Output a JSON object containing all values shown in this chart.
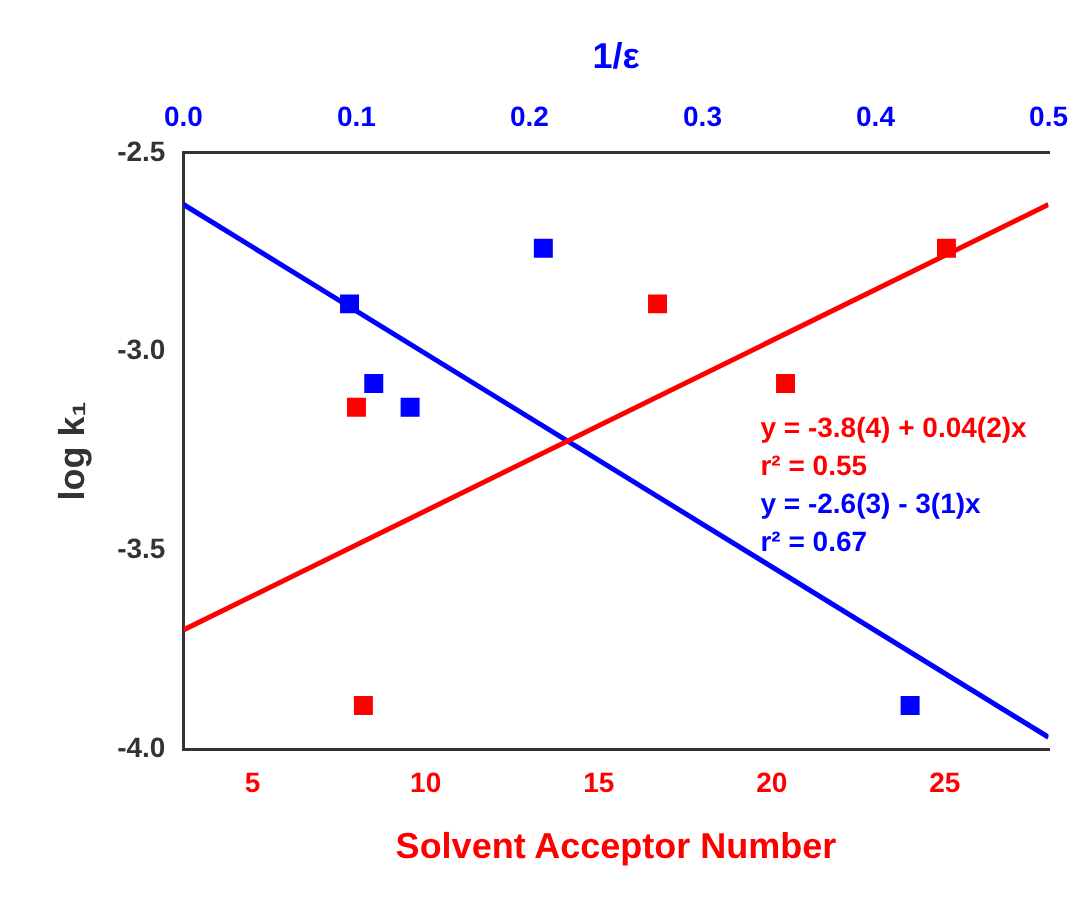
{
  "chart_data": {
    "type": "scatter",
    "xlabel": "Solvent Acceptor Number",
    "x2label": "1/ε",
    "ylabel": "log k₁",
    "xlim": [
      3,
      28
    ],
    "xticks": [
      5,
      10,
      15,
      20,
      25
    ],
    "x2lim": [
      0,
      0.5
    ],
    "x2ticks": [
      {
        "value": 0,
        "label": "0.0"
      },
      0.1,
      0.2,
      0.3,
      0.4,
      0.5
    ],
    "ylim": [
      -4,
      -2.5
    ],
    "yticks": [
      {
        "value": -4,
        "label": "-4.0"
      },
      -3.5,
      {
        "value": -3,
        "label": "-3.0"
      },
      -2.5
    ],
    "grid": false,
    "legend": false,
    "series": [
      {
        "type": "scatter",
        "marker": "square",
        "color": "#ff0000",
        "x": [
          8.0,
          8.2,
          16.7,
          20.4,
          25.05
        ],
        "values": [
          -3.14,
          -3.89,
          -2.88,
          -3.08,
          -2.74
        ]
      },
      {
        "type": "scatter",
        "marker": "square",
        "axis": "x2",
        "color": "#0000ff",
        "x": [
          0.096,
          0.11,
          0.131,
          0.208,
          0.42
        ],
        "values": [
          -2.88,
          -3.08,
          -3.14,
          -2.74,
          -3.89
        ]
      },
      {
        "type": "line",
        "marker": "none",
        "color": "#ff0000",
        "x": [
          3,
          28
        ],
        "values": [
          -3.7,
          -2.63
        ]
      },
      {
        "type": "line",
        "marker": "none",
        "axis": "x2",
        "color": "#0000ff",
        "x": [
          0,
          0.5
        ],
        "values": [
          -2.63,
          -3.97
        ]
      }
    ],
    "annotations": [
      "y = -3.8(4) + 0.04(2)x",
      "r² = 0.55",
      "y = -2.6(3) - 3(1)x",
      "r² = 0.67"
    ]
  }
}
